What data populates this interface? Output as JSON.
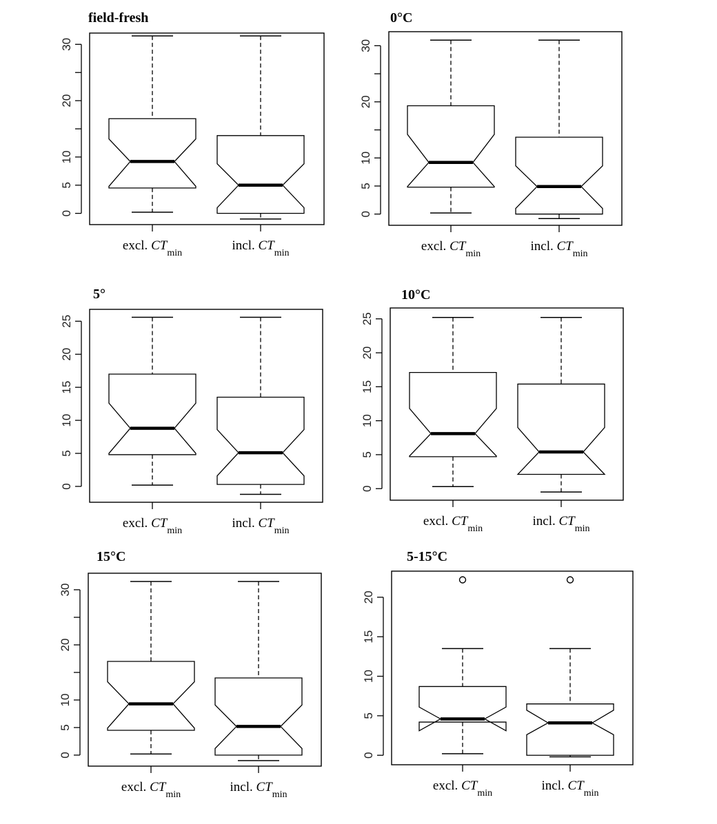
{
  "chart_data": [
    {
      "type": "boxplot",
      "title": "field-fresh",
      "notched": true,
      "ylim": [
        -2,
        32
      ],
      "yticks": [
        0,
        5,
        10,
        20,
        30
      ],
      "yticks_minor": [
        15,
        25
      ],
      "categories": [
        {
          "prefix": "excl.",
          "italic": "CT",
          "sub": "min"
        },
        {
          "prefix": "incl.",
          "italic": "CT",
          "sub": "min"
        }
      ],
      "boxes": [
        {
          "min": 0.2,
          "q1": 4.5,
          "median": 9.2,
          "q3": 16.8,
          "max": 31.5,
          "notch_lo": 4.8,
          "notch_hi": 13.2,
          "outliers": []
        },
        {
          "min": -1.0,
          "q1": 0.0,
          "median": 5.0,
          "q3": 13.8,
          "max": 31.5,
          "notch_lo": 1.0,
          "notch_hi": 8.8,
          "outliers": []
        }
      ]
    },
    {
      "type": "boxplot",
      "title": "0°C",
      "notched": true,
      "ylim": [
        -2,
        32.5
      ],
      "yticks": [
        0,
        5,
        10,
        20,
        30
      ],
      "yticks_minor": [
        15,
        25
      ],
      "categories": [
        {
          "prefix": "excl.",
          "italic": "CT",
          "sub": "min"
        },
        {
          "prefix": "incl.",
          "italic": "CT",
          "sub": "min"
        }
      ],
      "boxes": [
        {
          "min": 0.2,
          "q1": 4.8,
          "median": 9.2,
          "q3": 19.3,
          "max": 31.0,
          "notch_lo": 4.9,
          "notch_hi": 14.2,
          "outliers": []
        },
        {
          "min": -0.8,
          "q1": 0.0,
          "median": 4.9,
          "q3": 13.7,
          "max": 31.0,
          "notch_lo": 1.0,
          "notch_hi": 8.6,
          "outliers": []
        }
      ]
    },
    {
      "type": "boxplot",
      "title": "5°",
      "notched": true,
      "ylim": [
        -2.4,
        26.8
      ],
      "yticks": [
        0,
        5,
        10,
        15,
        20,
        25
      ],
      "yticks_minor": [],
      "categories": [
        {
          "prefix": "excl.",
          "italic": "CT",
          "sub": "min"
        },
        {
          "prefix": "incl.",
          "italic": "CT",
          "sub": "min"
        }
      ],
      "boxes": [
        {
          "min": 0.2,
          "q1": 4.8,
          "median": 8.8,
          "q3": 17.0,
          "max": 25.6,
          "notch_lo": 5.0,
          "notch_hi": 12.6,
          "outliers": []
        },
        {
          "min": -1.2,
          "q1": 0.3,
          "median": 5.1,
          "q3": 13.5,
          "max": 25.6,
          "notch_lo": 1.6,
          "notch_hi": 8.6,
          "outliers": []
        }
      ]
    },
    {
      "type": "boxplot",
      "title": "10°C",
      "notched": true,
      "ylim": [
        -1.7,
        26.6
      ],
      "yticks": [
        0,
        5,
        10,
        15,
        20,
        25
      ],
      "yticks_minor": [],
      "categories": [
        {
          "prefix": "excl.",
          "italic": "CT",
          "sub": "min"
        },
        {
          "prefix": "incl.",
          "italic": "CT",
          "sub": "min"
        }
      ],
      "boxes": [
        {
          "min": 0.3,
          "q1": 4.7,
          "median": 8.1,
          "q3": 17.1,
          "max": 25.2,
          "notch_lo": 4.8,
          "notch_hi": 11.8,
          "outliers": []
        },
        {
          "min": -0.5,
          "q1": 2.1,
          "median": 5.4,
          "q3": 15.4,
          "max": 25.2,
          "notch_lo": 2.1,
          "notch_hi": 9.0,
          "outliers": []
        }
      ]
    },
    {
      "type": "boxplot",
      "title": "15°C",
      "notched": true,
      "ylim": [
        -2,
        33
      ],
      "yticks": [
        0,
        5,
        10,
        20,
        30
      ],
      "yticks_minor": [
        15,
        25
      ],
      "categories": [
        {
          "prefix": "excl.",
          "italic": "CT",
          "sub": "min"
        },
        {
          "prefix": "incl.",
          "italic": "CT",
          "sub": "min"
        }
      ],
      "boxes": [
        {
          "min": 0.2,
          "q1": 4.5,
          "median": 9.3,
          "q3": 17.0,
          "max": 31.5,
          "notch_lo": 4.9,
          "notch_hi": 13.3,
          "outliers": []
        },
        {
          "min": -1.0,
          "q1": 0.0,
          "median": 5.2,
          "q3": 14.0,
          "max": 31.5,
          "notch_lo": 1.2,
          "notch_hi": 9.1,
          "outliers": []
        }
      ]
    },
    {
      "type": "boxplot",
      "title": "5-15°C",
      "notched": true,
      "ylim": [
        -1.2,
        23.3
      ],
      "yticks": [
        0,
        5,
        10,
        15,
        20
      ],
      "yticks_minor": [],
      "categories": [
        {
          "prefix": "excl.",
          "italic": "CT",
          "sub": "min"
        },
        {
          "prefix": "incl.",
          "italic": "CT",
          "sub": "min"
        }
      ],
      "boxes": [
        {
          "min": 0.2,
          "q1": 4.2,
          "median": 4.6,
          "q3": 8.7,
          "max": 13.5,
          "notch_lo": 3.1,
          "notch_hi": 6.1,
          "outliers": [
            22.2
          ]
        },
        {
          "min": -0.2,
          "q1": 0.0,
          "median": 4.1,
          "q3": 6.5,
          "max": 13.5,
          "notch_lo": 2.6,
          "notch_hi": 5.7,
          "outliers": [
            22.2
          ]
        }
      ]
    }
  ]
}
